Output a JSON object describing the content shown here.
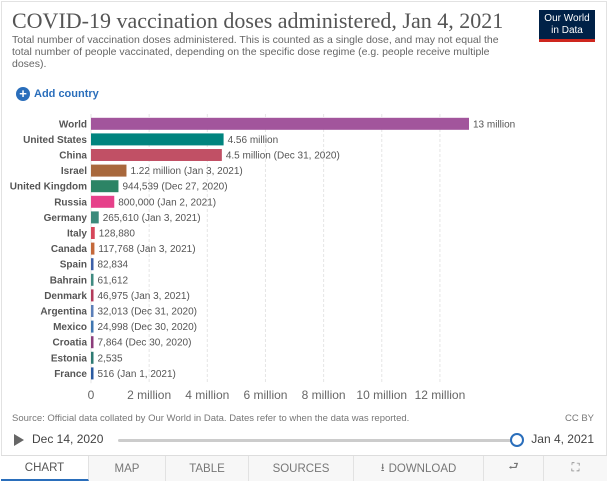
{
  "header": {
    "title": "COVID-19 vaccination doses administered, Jan 4, 2021",
    "subtitle": "Total number of vaccination doses administered. This is counted as a single dose, and may not equal the total number of people vaccinated, depending on the specific dose regime (e.g. people receive multiple doses).",
    "logo_line1": "Our World",
    "logo_line2": "in Data",
    "add_country": "Add country",
    "add_icon": "plus-circle-icon"
  },
  "chart_data": {
    "type": "bar",
    "orientation": "horizontal",
    "title": "COVID-19 vaccination doses administered, Jan 4, 2021",
    "xlabel": "",
    "ylabel": "",
    "xlim": [
      0,
      13000000
    ],
    "xticks": [
      0,
      2000000,
      4000000,
      6000000,
      8000000,
      10000000,
      12000000
    ],
    "xtick_labels": [
      "0",
      "2 million",
      "4 million",
      "6 million",
      "8 million",
      "10 million",
      "12 million"
    ],
    "grid": true,
    "categories": [
      "World",
      "United States",
      "China",
      "Israel",
      "United Kingdom",
      "Russia",
      "Germany",
      "Italy",
      "Canada",
      "Spain",
      "Bahrain",
      "Denmark",
      "Argentina",
      "Mexico",
      "Croatia",
      "Estonia",
      "France"
    ],
    "values": [
      13000000,
      4560000,
      4500000,
      1220000,
      944539,
      800000,
      265610,
      128880,
      117768,
      82834,
      61612,
      46975,
      32013,
      24998,
      7864,
      2535,
      516
    ],
    "labels": [
      "13 million",
      "4.56 million",
      "4.5 million (Dec 31, 2020)",
      "1.22 million (Jan 3, 2021)",
      "944,539 (Dec 27, 2020)",
      "800,000 (Jan 2, 2021)",
      "265,610 (Jan 3, 2021)",
      "128,880",
      "117,768 (Jan 3, 2021)",
      "82,834",
      "61,612",
      "46,975 (Jan 3, 2021)",
      "32,013 (Dec 31, 2020)",
      "24,998 (Dec 30, 2020)",
      "7,864 (Dec 30, 2020)",
      "2,535",
      "516 (Jan 1, 2021)"
    ],
    "colors": [
      "#a2559c",
      "#00847e",
      "#c15065",
      "#a8683c",
      "#2c8465",
      "#e6408a",
      "#3a8a7b",
      "#d6475a",
      "#c4683a",
      "#3b5fa8",
      "#3f8a80",
      "#b23b5a",
      "#5b7fb8",
      "#3f76b0",
      "#8b3c7a",
      "#2e7a72",
      "#2a5aa0"
    ]
  },
  "footer": {
    "source": "Source: Official data collated by Our World in Data. Dates refer to when the data was reported.",
    "license": "CC BY"
  },
  "timeline": {
    "start": "Dec 14, 2020",
    "end": "Jan 4, 2021",
    "play_icon": "play-icon",
    "position": 1.0
  },
  "tabs": {
    "chart": "CHART",
    "map": "MAP",
    "table": "TABLE",
    "sources": "SOURCES",
    "download": "DOWNLOAD",
    "download_icon": "download-icon",
    "share_icon": "share-icon",
    "fullscreen_icon": "fullscreen-icon"
  }
}
